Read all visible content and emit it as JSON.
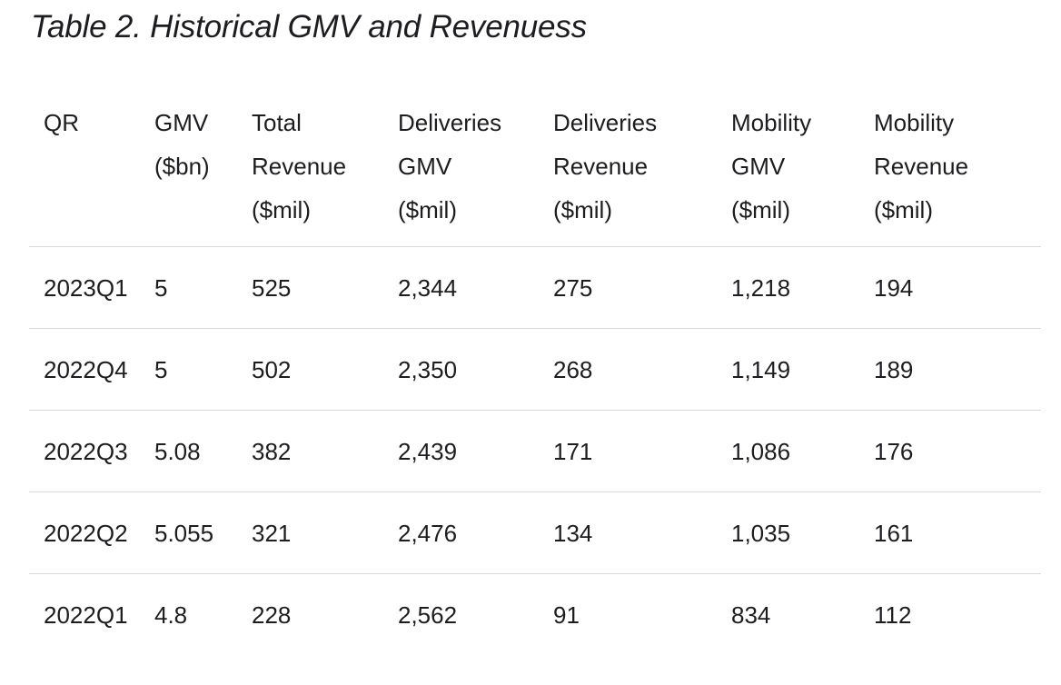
{
  "title": "Table 2. Historical GMV and Revenuess",
  "table": {
    "headers": [
      [
        "QR"
      ],
      [
        "GMV",
        "($bn)"
      ],
      [
        "Total",
        "Revenue",
        "($mil)"
      ],
      [
        "Deliveries",
        "GMV",
        "($mil)"
      ],
      [
        "Deliveries",
        "Revenue",
        "($mil)"
      ],
      [
        "Mobility",
        "GMV",
        "($mil)"
      ],
      [
        "Mobility",
        "Revenue",
        "($mil)"
      ]
    ],
    "rows": [
      [
        "2023Q1",
        "5",
        "525",
        "2,344",
        "275",
        "1,218",
        "194"
      ],
      [
        "2022Q4",
        "5",
        "502",
        "2,350",
        "268",
        "1,149",
        "189"
      ],
      [
        "2022Q3",
        "5.08",
        "382",
        "2,439",
        "171",
        "1,086",
        "176"
      ],
      [
        "2022Q2",
        "5.055",
        "321",
        "2,476",
        "134",
        "1,035",
        "161"
      ],
      [
        "2022Q1",
        "4.8",
        "228",
        "2,562",
        "91",
        "834",
        "112"
      ]
    ]
  },
  "colors": {
    "text": "#1d1d1f",
    "rule": "#d9d9d9",
    "background": "#ffffff"
  }
}
